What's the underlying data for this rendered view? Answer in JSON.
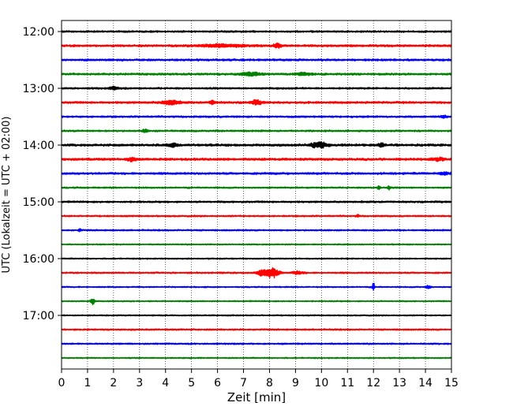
{
  "chart_data": {
    "type": "line",
    "title": "",
    "xlabel": "Zeit  [min]",
    "ylabel": "UTC (Lokalzeit = UTC + 02:00)",
    "xlim": [
      0,
      15
    ],
    "xticks": [
      0,
      1,
      2,
      3,
      4,
      5,
      6,
      7,
      8,
      9,
      10,
      11,
      12,
      13,
      14,
      15
    ],
    "xtick_labels": [
      "0",
      "1",
      "2",
      "3",
      "4",
      "5",
      "6",
      "7",
      "8",
      "9",
      "10",
      "11",
      "12",
      "13",
      "14",
      "15"
    ],
    "ytick_labels": [
      "12:00",
      "13:00",
      "14:00",
      "15:00",
      "16:00",
      "17:00"
    ],
    "ytick_trace_index": [
      0,
      4,
      8,
      12,
      16,
      20
    ],
    "grid": "vertical dotted",
    "trace_minutes": 15,
    "traces_start": "12:00",
    "colors": [
      "#000000",
      "#ff0000",
      "#0000ff",
      "#008000"
    ],
    "series": [
      {
        "start": "12:00",
        "color": "#000000",
        "noise": 0.35,
        "events": []
      },
      {
        "start": "12:15",
        "color": "#ff0000",
        "noise": 0.4,
        "events": [
          [
            6.2,
            0.6,
            0.9
          ],
          [
            8.3,
            0.9,
            0.15
          ]
        ]
      },
      {
        "start": "12:30",
        "color": "#0000ff",
        "noise": 0.4,
        "events": []
      },
      {
        "start": "12:45",
        "color": "#008000",
        "noise": 0.4,
        "events": [
          [
            7.3,
            0.7,
            0.4
          ],
          [
            9.3,
            0.6,
            0.3
          ]
        ]
      },
      {
        "start": "13:00",
        "color": "#000000",
        "noise": 0.35,
        "events": [
          [
            2.0,
            0.7,
            0.15
          ]
        ]
      },
      {
        "start": "13:15",
        "color": "#ff0000",
        "noise": 0.4,
        "events": [
          [
            4.2,
            1.0,
            0.3
          ],
          [
            5.8,
            0.8,
            0.1
          ],
          [
            7.5,
            1.0,
            0.2
          ]
        ]
      },
      {
        "start": "13:30",
        "color": "#0000ff",
        "noise": 0.35,
        "events": [
          [
            14.7,
            0.6,
            0.1
          ]
        ]
      },
      {
        "start": "13:45",
        "color": "#008000",
        "noise": 0.35,
        "events": [
          [
            3.2,
            0.7,
            0.1
          ]
        ]
      },
      {
        "start": "14:00",
        "color": "#000000",
        "noise": 0.45,
        "events": [
          [
            4.3,
            0.9,
            0.15
          ],
          [
            9.9,
            1.4,
            0.3
          ],
          [
            12.3,
            1.0,
            0.1
          ]
        ]
      },
      {
        "start": "14:15",
        "color": "#ff0000",
        "noise": 0.45,
        "events": [
          [
            2.7,
            0.9,
            0.15
          ],
          [
            14.5,
            0.6,
            0.2
          ]
        ]
      },
      {
        "start": "14:30",
        "color": "#0000ff",
        "noise": 0.4,
        "events": [
          [
            14.7,
            0.6,
            0.2
          ]
        ]
      },
      {
        "start": "14:45",
        "color": "#008000",
        "noise": 0.3,
        "events": [
          [
            12.2,
            1.0,
            0.05
          ],
          [
            12.6,
            0.8,
            0.05
          ]
        ]
      },
      {
        "start": "15:00",
        "color": "#000000",
        "noise": 0.35,
        "events": []
      },
      {
        "start": "15:15",
        "color": "#ff0000",
        "noise": 0.3,
        "events": [
          [
            11.4,
            0.6,
            0.05
          ]
        ]
      },
      {
        "start": "15:30",
        "color": "#0000ff",
        "noise": 0.3,
        "events": [
          [
            0.7,
            0.6,
            0.05
          ]
        ]
      },
      {
        "start": "15:45",
        "color": "#008000",
        "noise": 0.25,
        "events": []
      },
      {
        "start": "16:00",
        "color": "#000000",
        "noise": 0.25,
        "events": []
      },
      {
        "start": "16:15",
        "color": "#ff0000",
        "noise": 0.3,
        "events": [
          [
            7.7,
            1.2,
            0.2
          ],
          [
            8.1,
            2.4,
            0.25
          ],
          [
            9.1,
            0.7,
            0.2
          ]
        ]
      },
      {
        "start": "16:30",
        "color": "#0000ff",
        "noise": 0.25,
        "events": [
          [
            12.0,
            2.1,
            0.04
          ],
          [
            14.1,
            0.7,
            0.1
          ]
        ]
      },
      {
        "start": "16:45",
        "color": "#008000",
        "noise": 0.25,
        "events": [
          [
            1.2,
            1.5,
            0.08
          ]
        ]
      },
      {
        "start": "17:00",
        "color": "#000000",
        "noise": 0.25,
        "events": []
      },
      {
        "start": "17:15",
        "color": "#ff0000",
        "noise": 0.3,
        "events": []
      },
      {
        "start": "17:30",
        "color": "#0000ff",
        "noise": 0.3,
        "events": []
      },
      {
        "start": "17:45",
        "color": "#008000",
        "noise": 0.25,
        "events": []
      }
    ]
  }
}
